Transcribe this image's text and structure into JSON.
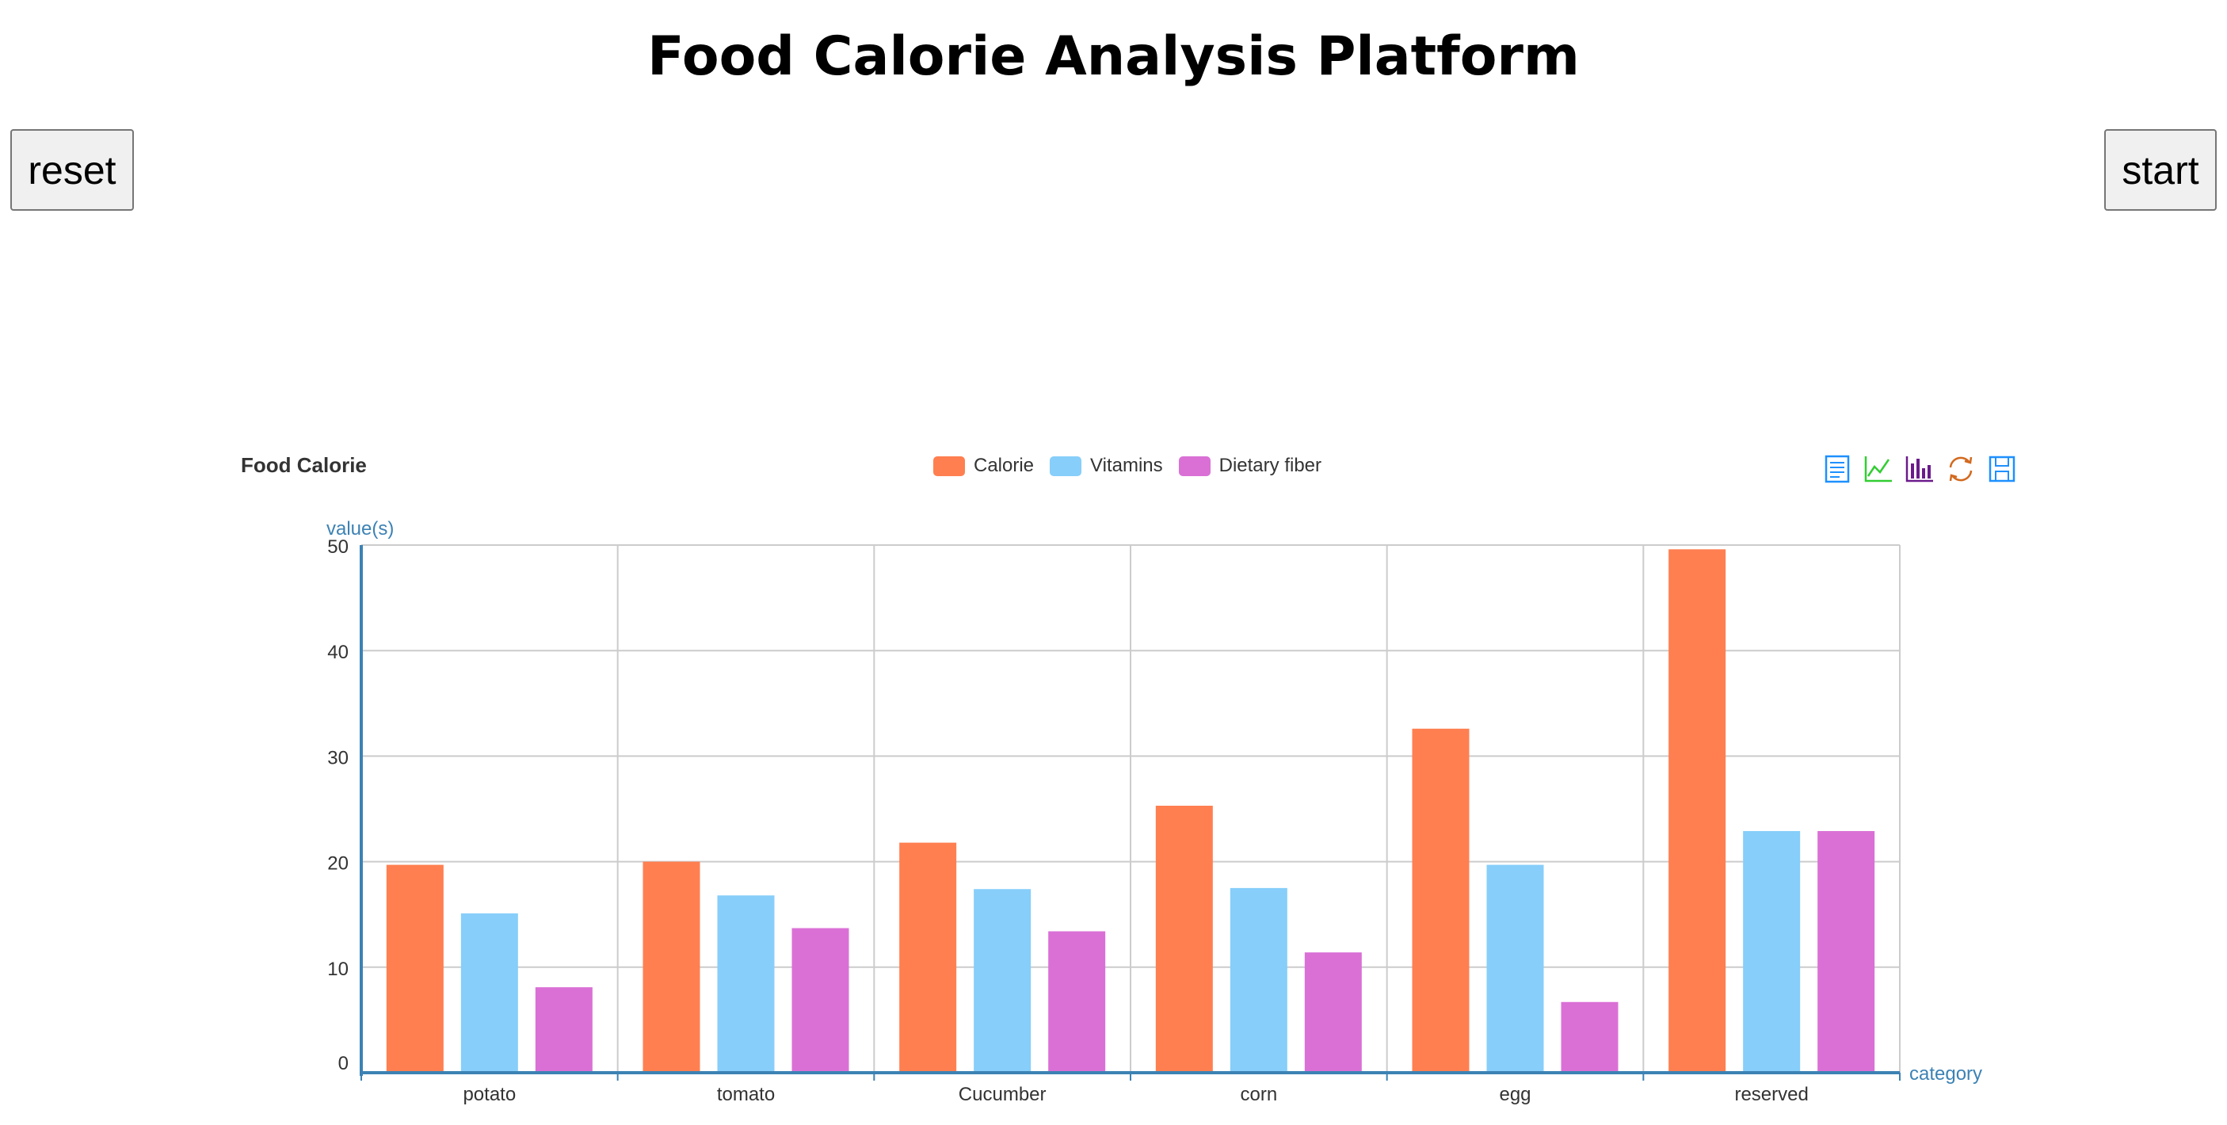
{
  "header": {
    "title": "Food Calorie Analysis Platform"
  },
  "controls": {
    "reset_label": "reset",
    "start_label": "start"
  },
  "toolbox": {
    "icons": [
      "data-view-icon",
      "line-chart-icon",
      "bar-chart-icon",
      "restore-icon",
      "save-image-icon"
    ]
  },
  "chart_data": {
    "type": "bar",
    "title": "Food Calorie",
    "xlabel": "category",
    "ylabel": "value(s)",
    "categories": [
      "potato",
      "tomato",
      "Cucumber",
      "corn",
      "egg",
      "reserved"
    ],
    "series": [
      {
        "name": "Calorie",
        "color": "#ff7f50",
        "values": [
          19.7,
          20.0,
          21.8,
          25.3,
          32.6,
          49.6
        ]
      },
      {
        "name": "Vitamins",
        "color": "#87cefa",
        "values": [
          15.1,
          16.8,
          17.4,
          17.5,
          19.7,
          22.9
        ]
      },
      {
        "name": "Dietary fiber",
        "color": "#da70d6",
        "values": [
          8.1,
          13.7,
          13.4,
          11.4,
          6.7,
          22.9
        ]
      }
    ],
    "ylim": [
      0,
      50
    ],
    "yticks": [
      0,
      10,
      20,
      30,
      40,
      50
    ],
    "grid": true,
    "legend_position": "top-center",
    "axis_color": "#3c82b4"
  }
}
